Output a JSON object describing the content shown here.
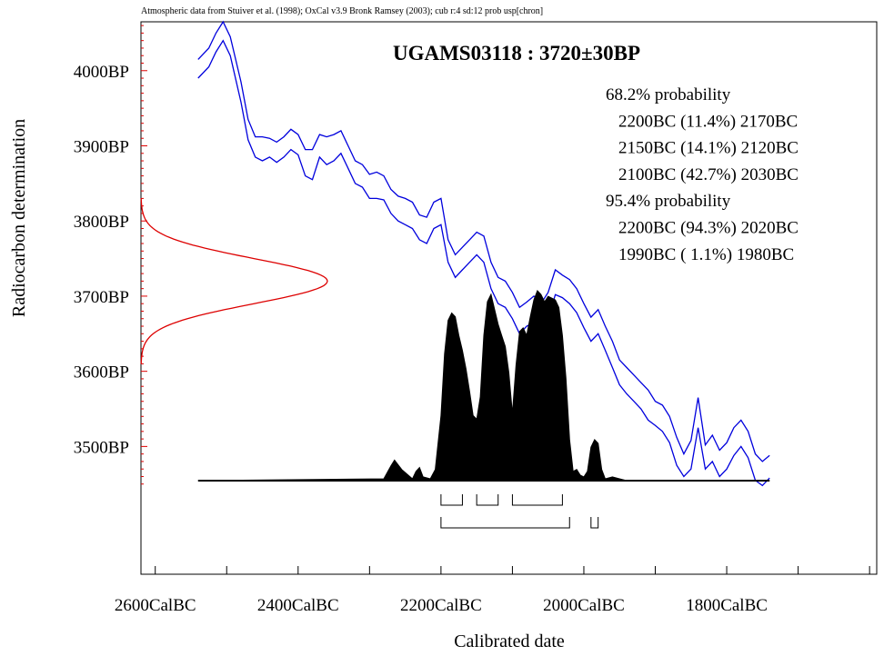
{
  "header_note": "Atmospheric data from Stuiver et al. (1998); OxCal v3.9 Bronk Ramsey (2003); cub r:4 sd:12 prob usp[chron]",
  "chart_data": {
    "type": "line",
    "title": "UGAMS03118 : 3720±30BP",
    "xlabel": "Calibrated date",
    "ylabel": "Radiocarbon determination",
    "xlim": [
      -2620,
      -1590
    ],
    "ylim": [
      3330,
      4065
    ],
    "x_tick_labels": [
      {
        "x": -2600,
        "label": "2600CalBC"
      },
      {
        "x": -2400,
        "label": "2400CalBC"
      },
      {
        "x": -2200,
        "label": "2200CalBC"
      },
      {
        "x": -2000,
        "label": "2000CalBC"
      },
      {
        "x": -1800,
        "label": "1800CalBC"
      }
    ],
    "x_minor_ticks": [
      -2600,
      -2500,
      -2400,
      -2300,
      -2200,
      -2100,
      -2000,
      -1900,
      -1800,
      -1700,
      -1600
    ],
    "y_tick_labels": [
      {
        "y": 4000,
        "label": "4000BP"
      },
      {
        "y": 3900,
        "label": "3900BP"
      },
      {
        "y": 3800,
        "label": "3800BP"
      },
      {
        "y": 3700,
        "label": "3700BP"
      },
      {
        "y": 3600,
        "label": "3600BP"
      },
      {
        "y": 3500,
        "label": "3500BP"
      }
    ],
    "annotations": [
      "68.2% probability",
      "2200BC (11.4%) 2170BC",
      "2150BC (14.1%) 2120BC",
      "2100BC (42.7%) 2030BC",
      "95.4% probability",
      "2200BC (94.3%) 2020BC",
      "1990BC ( 1.1%) 1980BC"
    ],
    "calibration_curve": {
      "color": "#0000dd",
      "x": [
        -2540,
        -2525,
        -2515,
        -2505,
        -2495,
        -2480,
        -2470,
        -2460,
        -2450,
        -2440,
        -2430,
        -2420,
        -2410,
        -2400,
        -2390,
        -2380,
        -2370,
        -2360,
        -2350,
        -2340,
        -2330,
        -2320,
        -2310,
        -2300,
        -2290,
        -2280,
        -2270,
        -2260,
        -2250,
        -2240,
        -2230,
        -2220,
        -2210,
        -2200,
        -2190,
        -2180,
        -2170,
        -2160,
        -2150,
        -2140,
        -2130,
        -2120,
        -2110,
        -2100,
        -2090,
        -2080,
        -2070,
        -2060,
        -2050,
        -2040,
        -2030,
        -2020,
        -2010,
        -2000,
        -1990,
        -1980,
        -1970,
        -1960,
        -1950,
        -1940,
        -1930,
        -1920,
        -1910,
        -1900,
        -1890,
        -1880,
        -1870,
        -1860,
        -1850,
        -1840,
        -1830,
        -1820,
        -1810,
        -1800,
        -1790,
        -1780,
        -1770,
        -1760,
        -1750,
        -1740
      ],
      "upper": [
        4015,
        4030,
        4050,
        4065,
        4045,
        3985,
        3935,
        3912,
        3912,
        3910,
        3905,
        3912,
        3922,
        3915,
        3895,
        3895,
        3915,
        3912,
        3915,
        3920,
        3900,
        3880,
        3875,
        3862,
        3865,
        3860,
        3842,
        3833,
        3830,
        3825,
        3808,
        3805,
        3825,
        3830,
        3775,
        3755,
        3765,
        3775,
        3785,
        3780,
        3745,
        3725,
        3720,
        3705,
        3685,
        3692,
        3700,
        3690,
        3705,
        3735,
        3728,
        3722,
        3710,
        3690,
        3672,
        3682,
        3660,
        3640,
        3615,
        3605,
        3595,
        3585,
        3575,
        3560,
        3555,
        3540,
        3512,
        3490,
        3508,
        3565,
        3502,
        3515,
        3495,
        3505,
        3525,
        3535,
        3520,
        3490,
        3480,
        3488
      ],
      "lower": [
        3990,
        4005,
        4025,
        4040,
        4020,
        3958,
        3908,
        3885,
        3880,
        3885,
        3878,
        3885,
        3895,
        3888,
        3860,
        3855,
        3885,
        3875,
        3880,
        3890,
        3870,
        3850,
        3845,
        3830,
        3830,
        3828,
        3810,
        3800,
        3795,
        3790,
        3775,
        3770,
        3790,
        3795,
        3745,
        3725,
        3735,
        3745,
        3755,
        3745,
        3710,
        3690,
        3685,
        3670,
        3650,
        3660,
        3665,
        3655,
        3670,
        3702,
        3698,
        3690,
        3678,
        3658,
        3640,
        3650,
        3628,
        3605,
        3582,
        3570,
        3560,
        3550,
        3535,
        3528,
        3520,
        3505,
        3475,
        3460,
        3470,
        3525,
        3470,
        3480,
        3460,
        3470,
        3488,
        3500,
        3485,
        3455,
        3448,
        3458
      ]
    },
    "radiocarbon_measurement": {
      "color": "#dd0000",
      "mean_bp": 3720,
      "sd_bp": 30,
      "plot_range_bp": [
        3610,
        3830
      ]
    },
    "calibrated_distribution": {
      "color": "#000000",
      "x": [
        -2540,
        -2280,
        -2270,
        -2265,
        -2255,
        -2240,
        -2235,
        -2230,
        -2225,
        -2215,
        -2208,
        -2200,
        -2195,
        -2190,
        -2185,
        -2180,
        -2175,
        -2170,
        -2165,
        -2160,
        -2155,
        -2150,
        -2145,
        -2140,
        -2135,
        -2130,
        -2125,
        -2120,
        -2115,
        -2110,
        -2105,
        -2100,
        -2095,
        -2090,
        -2085,
        -2080,
        -2075,
        -2070,
        -2065,
        -2060,
        -2055,
        -2050,
        -2045,
        -2040,
        -2035,
        -2030,
        -2025,
        -2020,
        -2015,
        -2010,
        -2005,
        -2000,
        -1995,
        -1990,
        -1985,
        -1980,
        -1975,
        -1970,
        -1960,
        -1950,
        -1940,
        -1740
      ],
      "density": [
        0,
        0.01,
        0.08,
        0.11,
        0.06,
        0.01,
        0.05,
        0.07,
        0.02,
        0.01,
        0.06,
        0.35,
        0.68,
        0.86,
        0.9,
        0.88,
        0.78,
        0.7,
        0.6,
        0.48,
        0.35,
        0.33,
        0.45,
        0.78,
        0.96,
        1.0,
        0.92,
        0.84,
        0.78,
        0.72,
        0.58,
        0.36,
        0.62,
        0.8,
        0.82,
        0.78,
        0.88,
        0.97,
        1.02,
        1.0,
        0.96,
        0.99,
        0.98,
        0.97,
        0.93,
        0.78,
        0.55,
        0.22,
        0.05,
        0.06,
        0.03,
        0.02,
        0.05,
        0.18,
        0.22,
        0.2,
        0.06,
        0.01,
        0.02,
        0.01,
        0.0,
        0
      ]
    },
    "range_bars_68": [
      [
        -2200,
        -2170
      ],
      [
        -2150,
        -2120
      ],
      [
        -2100,
        -2030
      ]
    ],
    "range_bars_95": [
      [
        -2200,
        -2020
      ],
      [
        -1990,
        -1980
      ]
    ]
  }
}
